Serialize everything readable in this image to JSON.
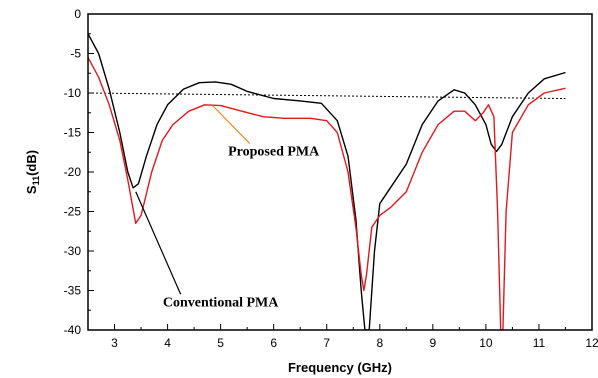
{
  "chart_data": {
    "type": "line",
    "xlabel": "Frequency (GHz)",
    "ylabel_main": "S",
    "ylabel_sub": "11",
    "ylabel_unit": "(dB)",
    "xlim": [
      2.5,
      12
    ],
    "ylim": [
      -40,
      0
    ],
    "x_ticks": [
      3,
      4,
      5,
      6,
      7,
      8,
      9,
      10,
      11,
      12
    ],
    "y_ticks": [
      0,
      -5,
      -10,
      -15,
      -20,
      -25,
      -30,
      -35,
      -40
    ],
    "grid": false,
    "reference_line": {
      "x": [
        2.5,
        11.5
      ],
      "y": [
        -10,
        -10.7
      ],
      "style": "dotted",
      "color": "#000000"
    },
    "series": [
      {
        "label": "Conventional PMA",
        "color": "#000000",
        "points": [
          [
            2.5,
            -2.5
          ],
          [
            2.7,
            -5
          ],
          [
            2.9,
            -9.5
          ],
          [
            3.1,
            -15
          ],
          [
            3.25,
            -20
          ],
          [
            3.35,
            -22
          ],
          [
            3.45,
            -21.5
          ],
          [
            3.6,
            -18
          ],
          [
            3.8,
            -14
          ],
          [
            4.0,
            -11.5
          ],
          [
            4.3,
            -9.5
          ],
          [
            4.6,
            -8.7
          ],
          [
            4.9,
            -8.6
          ],
          [
            5.2,
            -8.9
          ],
          [
            5.5,
            -9.8
          ],
          [
            6.0,
            -10.7
          ],
          [
            6.5,
            -11.0
          ],
          [
            6.9,
            -11.3
          ],
          [
            7.2,
            -13.5
          ],
          [
            7.4,
            -18
          ],
          [
            7.55,
            -26
          ],
          [
            7.65,
            -35
          ],
          [
            7.72,
            -40
          ],
          [
            7.8,
            -40
          ],
          [
            7.9,
            -30
          ],
          [
            8.0,
            -24
          ],
          [
            8.2,
            -22
          ],
          [
            8.5,
            -19
          ],
          [
            8.8,
            -14
          ],
          [
            9.1,
            -11
          ],
          [
            9.4,
            -9.6
          ],
          [
            9.6,
            -10
          ],
          [
            9.8,
            -11.5
          ],
          [
            10.0,
            -14
          ],
          [
            10.1,
            -16.5
          ],
          [
            10.2,
            -17.4
          ],
          [
            10.3,
            -16.5
          ],
          [
            10.5,
            -13
          ],
          [
            10.8,
            -10
          ],
          [
            11.1,
            -8.2
          ],
          [
            11.5,
            -7.4
          ]
        ]
      },
      {
        "label": "Proposed PMA",
        "color": "#e0191d",
        "points": [
          [
            2.5,
            -5.5
          ],
          [
            2.7,
            -8
          ],
          [
            2.9,
            -11.5
          ],
          [
            3.1,
            -16
          ],
          [
            3.25,
            -21
          ],
          [
            3.4,
            -26.5
          ],
          [
            3.5,
            -25.5
          ],
          [
            3.7,
            -20
          ],
          [
            3.9,
            -16
          ],
          [
            4.1,
            -14
          ],
          [
            4.4,
            -12.3
          ],
          [
            4.7,
            -11.5
          ],
          [
            5.0,
            -11.6
          ],
          [
            5.4,
            -12.3
          ],
          [
            5.8,
            -13.0
          ],
          [
            6.2,
            -13.2
          ],
          [
            6.7,
            -13.2
          ],
          [
            7.0,
            -13.5
          ],
          [
            7.2,
            -15
          ],
          [
            7.4,
            -20
          ],
          [
            7.55,
            -27
          ],
          [
            7.65,
            -33
          ],
          [
            7.7,
            -35
          ],
          [
            7.75,
            -33
          ],
          [
            7.85,
            -27
          ],
          [
            8.0,
            -25.5
          ],
          [
            8.2,
            -24.5
          ],
          [
            8.5,
            -22.5
          ],
          [
            8.8,
            -17.5
          ],
          [
            9.1,
            -14
          ],
          [
            9.4,
            -12.3
          ],
          [
            9.6,
            -12.3
          ],
          [
            9.8,
            -13.5
          ],
          [
            9.95,
            -12.5
          ],
          [
            10.05,
            -11.5
          ],
          [
            10.15,
            -13
          ],
          [
            10.22,
            -25
          ],
          [
            10.28,
            -40
          ],
          [
            10.32,
            -40
          ],
          [
            10.38,
            -25
          ],
          [
            10.5,
            -15
          ],
          [
            10.8,
            -11.5
          ],
          [
            11.1,
            -10
          ],
          [
            11.5,
            -9.4
          ]
        ]
      }
    ],
    "annotations": [
      {
        "text": "Proposed PMA",
        "text_at": [
          6.0,
          -17.9
        ],
        "points_to": [
          4.85,
          -11.6
        ],
        "leader_color": "#f08a24"
      },
      {
        "text": "Conventional PMA",
        "text_at": [
          5.0,
          -37.0
        ],
        "points_to": [
          3.4,
          -22.5
        ],
        "leader_color": "#000000"
      }
    ]
  }
}
